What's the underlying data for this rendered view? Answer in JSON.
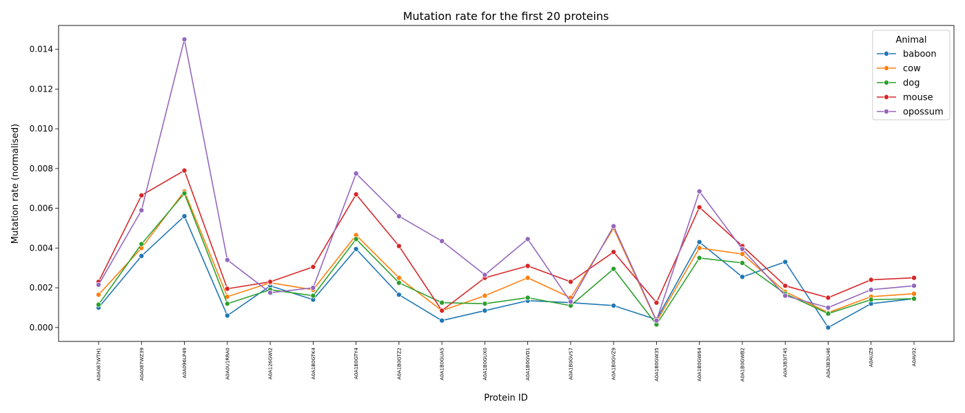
{
  "chart_data": {
    "type": "line",
    "title": "Mutation rate for the first 20 proteins",
    "xlabel": "Protein ID",
    "ylabel": "Mutation rate (normalised)",
    "categories": [
      "A0A087WTH1",
      "A0A087WZ39",
      "A0A096LP49",
      "A0A0U1RRA0",
      "A0A126GWI2",
      "A0A1B0GTK4",
      "A0A1B0GTY4",
      "A0A1B0GTZ2",
      "A0A1B0GUA5",
      "A0A1B0GUX0",
      "A0A1B0GVD1",
      "A0A1B0GVS7",
      "A0A1B0GVZ9",
      "A0A1B0GW35",
      "A0A1B0GW64",
      "A0A1B0GWB2",
      "A0A3B3IT45",
      "A0A3B3IU46",
      "A0AUZ9",
      "A0AV02"
    ],
    "ylim": [
      -0.0007,
      0.0152
    ],
    "yticks": [
      0.0,
      0.002,
      0.004,
      0.006,
      0.008,
      0.01,
      0.012,
      0.014
    ],
    "ytick_labels": [
      "0.000",
      "0.002",
      "0.004",
      "0.006",
      "0.008",
      "0.010",
      "0.012",
      "0.014"
    ],
    "legend_title": "Animal",
    "legend_position": "top-right",
    "grid": false,
    "series": [
      {
        "name": "baboon",
        "color": "#1f77b4",
        "values": [
          0.001,
          0.0036,
          0.0056,
          0.0006,
          0.0021,
          0.0014,
          0.00395,
          0.00165,
          0.00035,
          0.00085,
          0.00135,
          0.00125,
          0.0011,
          0.0004,
          0.0043,
          0.00255,
          0.0033,
          0.0,
          0.0012,
          0.00145
        ]
      },
      {
        "name": "cow",
        "color": "#ff7f0e",
        "values": [
          0.00165,
          0.004,
          0.00685,
          0.00155,
          0.00225,
          0.0019,
          0.00465,
          0.0025,
          0.00085,
          0.0016,
          0.0025,
          0.0015,
          0.005,
          0.0003,
          0.004,
          0.0037,
          0.0018,
          0.00075,
          0.00155,
          0.0017
        ]
      },
      {
        "name": "dog",
        "color": "#2ca02c",
        "values": [
          0.00115,
          0.0042,
          0.00675,
          0.0012,
          0.0019,
          0.0016,
          0.00445,
          0.00225,
          0.00125,
          0.0012,
          0.0015,
          0.0011,
          0.00295,
          0.00015,
          0.0035,
          0.00325,
          0.0017,
          0.0007,
          0.0014,
          0.00145
        ]
      },
      {
        "name": "mouse",
        "color": "#d62728",
        "values": [
          0.0023,
          0.00665,
          0.0079,
          0.00195,
          0.0023,
          0.00305,
          0.0067,
          0.0041,
          0.00085,
          0.0025,
          0.0031,
          0.0023,
          0.0038,
          0.00125,
          0.00605,
          0.0041,
          0.0021,
          0.0015,
          0.0024,
          0.0025
        ]
      },
      {
        "name": "opossum",
        "color": "#9467bd",
        "values": [
          0.00215,
          0.0059,
          0.0145,
          0.0034,
          0.00175,
          0.002,
          0.00775,
          0.0056,
          0.00435,
          0.00265,
          0.00445,
          0.0013,
          0.0051,
          0.00035,
          0.00685,
          0.00395,
          0.0016,
          0.001,
          0.0019,
          0.0021
        ]
      }
    ]
  }
}
